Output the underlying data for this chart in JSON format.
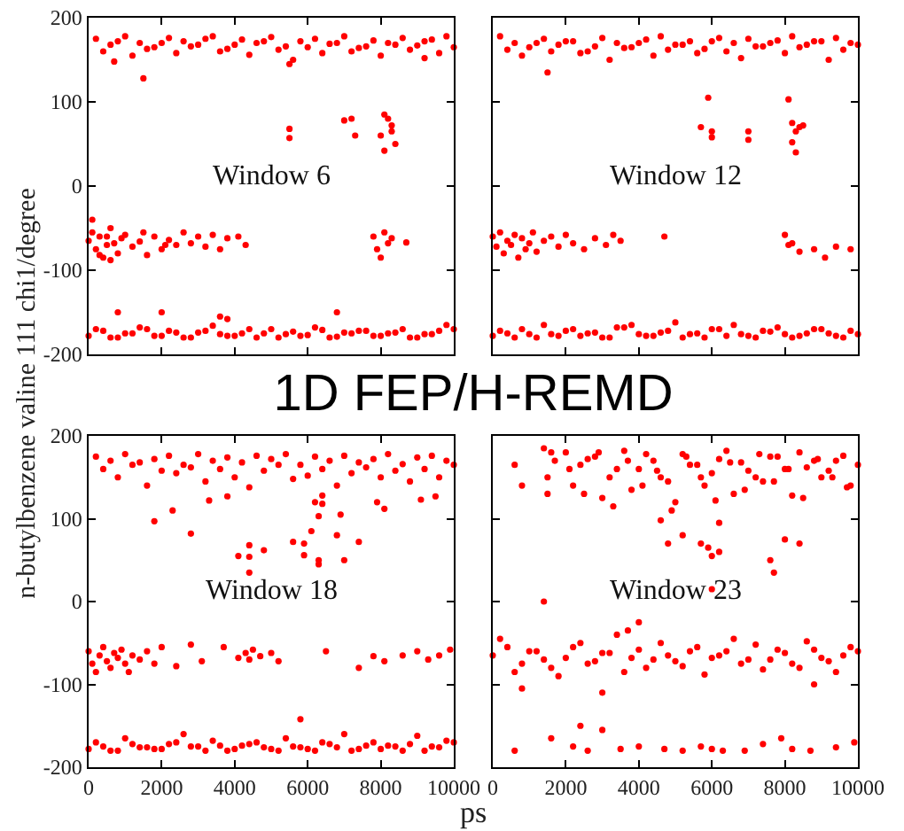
{
  "chart_data": [
    {
      "type": "scatter",
      "title": "1D FEP/H-REMD",
      "ylabel": "n-butylbenzene valine 111 chi1/degree",
      "annotations": [
        "Window 6"
      ],
      "color": "#ff0000",
      "marker": "circle",
      "xlim": [
        0,
        10000
      ],
      "ylim": [
        -200,
        200
      ],
      "xticks": [
        0,
        2000,
        4000,
        6000,
        8000,
        10000
      ],
      "yticks": [
        -200,
        -100,
        0,
        100,
        200
      ],
      "tick_labels": "y",
      "x": [
        200,
        600,
        1000,
        1400,
        1800,
        2200,
        2600,
        3000,
        3400,
        3800,
        4200,
        4600,
        5000,
        5400,
        5800,
        6200,
        6600,
        7000,
        7400,
        7800,
        8200,
        8600,
        9000,
        9400,
        9800,
        400,
        800,
        1200,
        1600,
        2000,
        2400,
        2800,
        3200,
        3600,
        4000,
        4400,
        4800,
        5200,
        5600,
        6000,
        6400,
        6800,
        7200,
        7600,
        8000,
        8400,
        8800,
        9200,
        9600,
        10000,
        1500,
        700,
        5500,
        9200,
        5500,
        5500,
        7000,
        7200,
        7300,
        8100,
        8200,
        8300,
        8300,
        8000,
        8100,
        8400,
        0,
        100,
        200,
        300,
        400,
        500,
        600,
        700,
        800,
        900,
        1000,
        1200,
        1400,
        1600,
        1800,
        2000,
        2200,
        2400,
        2600,
        2800,
        3000,
        3200,
        3400,
        3600,
        3800,
        4100,
        4300,
        100,
        300,
        500,
        1500,
        2100,
        600,
        7800,
        7900,
        8000,
        8100,
        8200,
        8300,
        8700,
        0,
        400,
        800,
        1200,
        1600,
        2000,
        2400,
        2800,
        3200,
        3600,
        4000,
        4400,
        4800,
        5200,
        5600,
        6000,
        6400,
        6800,
        7200,
        7600,
        8000,
        8400,
        8800,
        9200,
        9600,
        10000,
        200,
        600,
        1000,
        1400,
        1800,
        2200,
        2600,
        3000,
        3400,
        3800,
        4200,
        4600,
        5000,
        5400,
        5800,
        6200,
        6600,
        7000,
        7400,
        7800,
        8200,
        8600,
        9000,
        9400,
        9800,
        800,
        2000,
        3600,
        6800,
        3800
      ],
      "values": [
        175,
        168,
        178,
        170,
        165,
        176,
        172,
        168,
        178,
        163,
        174,
        170,
        177,
        166,
        172,
        175,
        169,
        178,
        164,
        173,
        170,
        176,
        167,
        174,
        178,
        160,
        172,
        155,
        163,
        170,
        158,
        166,
        175,
        160,
        168,
        156,
        172,
        162,
        150,
        165,
        158,
        170,
        160,
        166,
        155,
        168,
        162,
        172,
        158,
        165,
        128,
        148,
        145,
        152,
        68,
        57,
        78,
        80,
        60,
        85,
        80,
        72,
        65,
        60,
        42,
        50,
        -65,
        -55,
        -75,
        -60,
        -85,
        -70,
        -50,
        -68,
        -80,
        -62,
        -58,
        -72,
        -66,
        -82,
        -60,
        -75,
        -64,
        -70,
        -55,
        -68,
        -60,
        -72,
        -58,
        -75,
        -62,
        -60,
        -70,
        -40,
        -82,
        -60,
        -55,
        -70,
        -88,
        -60,
        -75,
        -85,
        -55,
        -68,
        -62,
        -67,
        -178,
        -172,
        -180,
        -175,
        -170,
        -178,
        -174,
        -180,
        -172,
        -176,
        -178,
        -170,
        -175,
        -180,
        -173,
        -177,
        -171,
        -179,
        -175,
        -172,
        -178,
        -174,
        -180,
        -176,
        -172,
        -170,
        -170,
        -180,
        -175,
        -168,
        -178,
        -172,
        -180,
        -174,
        -166,
        -178,
        -175,
        -180,
        -170,
        -176,
        -178,
        -168,
        -180,
        -174,
        -172,
        -178,
        -175,
        -170,
        -180,
        -176,
        -165,
        -150,
        -150,
        -155,
        -150,
        -158
      ]
    },
    {
      "type": "scatter",
      "annotations": [
        "Window 12"
      ],
      "color": "#ff0000",
      "marker": "circle",
      "xlim": [
        0,
        10000
      ],
      "ylim": [
        -200,
        200
      ],
      "xticks": [
        0,
        2000,
        4000,
        6000,
        8000,
        10000
      ],
      "yticks": [
        -200,
        -100,
        0,
        100,
        200
      ],
      "tick_labels": false,
      "x": [
        200,
        600,
        1000,
        1400,
        1800,
        2200,
        2600,
        3000,
        3400,
        3800,
        4200,
        4600,
        5000,
        5400,
        5800,
        6200,
        6600,
        7000,
        7400,
        7800,
        8200,
        8600,
        9000,
        9400,
        9800,
        400,
        800,
        1200,
        1600,
        2000,
        2400,
        2800,
        3200,
        3600,
        4000,
        4400,
        4800,
        5200,
        5600,
        6000,
        6400,
        6800,
        7200,
        7600,
        8000,
        8400,
        8800,
        9200,
        9600,
        10000,
        1500,
        5900,
        5700,
        6000,
        6000,
        7000,
        7000,
        8100,
        8200,
        8200,
        8300,
        8300,
        8400,
        8500,
        0,
        100,
        200,
        300,
        400,
        500,
        600,
        700,
        800,
        900,
        1000,
        1100,
        1200,
        1400,
        1600,
        1800,
        2000,
        2200,
        2500,
        2800,
        3100,
        3300,
        3500,
        4700,
        8000,
        8100,
        8200,
        8400,
        8800,
        9100,
        9400,
        9800,
        0,
        400,
        800,
        1200,
        1600,
        2000,
        2400,
        2800,
        3200,
        3600,
        4000,
        4400,
        4800,
        5200,
        5600,
        6000,
        6400,
        6800,
        7200,
        7600,
        8000,
        8400,
        8800,
        9200,
        9600,
        10000,
        200,
        600,
        1000,
        1400,
        1800,
        2200,
        2600,
        3000,
        3400,
        3800,
        4200,
        4600,
        5000,
        5400,
        5800,
        6200,
        6600,
        7000,
        7400,
        7800,
        8200,
        8600,
        9000,
        9400,
        9800
      ],
      "values": [
        178,
        170,
        165,
        175,
        168,
        172,
        160,
        176,
        170,
        165,
        174,
        178,
        168,
        172,
        163,
        176,
        170,
        175,
        166,
        173,
        178,
        168,
        172,
        176,
        170,
        162,
        155,
        170,
        160,
        172,
        158,
        166,
        150,
        164,
        170,
        155,
        162,
        168,
        158,
        172,
        160,
        152,
        166,
        170,
        158,
        165,
        172,
        150,
        162,
        168,
        135,
        105,
        70,
        65,
        58,
        55,
        65,
        103,
        75,
        52,
        40,
        65,
        70,
        72,
        -60,
        -72,
        -55,
        -80,
        -65,
        -70,
        -58,
        -85,
        -62,
        -75,
        -68,
        -55,
        -78,
        -65,
        -60,
        -72,
        -58,
        -68,
        -75,
        -62,
        -70,
        -58,
        -65,
        -60,
        -58,
        -70,
        -68,
        -78,
        -75,
        -85,
        -72,
        -75,
        -178,
        -175,
        -170,
        -180,
        -176,
        -172,
        -178,
        -174,
        -180,
        -168,
        -176,
        -178,
        -172,
        -180,
        -175,
        -170,
        -178,
        -176,
        -180,
        -173,
        -176,
        -178,
        -170,
        -175,
        -180,
        -176,
        -172,
        -180,
        -176,
        -165,
        -178,
        -170,
        -175,
        -180,
        -168,
        -165,
        -178,
        -174,
        -162,
        -176,
        -180,
        -170,
        -165,
        -178,
        -172,
        -168,
        -180,
        -175,
        -170,
        -178,
        -172
      ]
    },
    {
      "type": "scatter",
      "xlabel": "ps",
      "annotations": [
        "Window 18"
      ],
      "color": "#ff0000",
      "marker": "circle",
      "xlim": [
        0,
        10000
      ],
      "ylim": [
        -200,
        200
      ],
      "xticks": [
        0,
        2000,
        4000,
        6000,
        8000,
        10000
      ],
      "yticks": [
        -200,
        -100,
        0,
        100,
        200
      ],
      "x": [
        200,
        600,
        1000,
        1400,
        1800,
        2200,
        2600,
        3000,
        3400,
        3800,
        4200,
        4600,
        5000,
        5400,
        5800,
        6200,
        6600,
        7000,
        7400,
        7800,
        8200,
        8600,
        9000,
        9400,
        9800,
        400,
        800,
        1200,
        1600,
        2000,
        2400,
        2800,
        3200,
        3600,
        4000,
        4400,
        4800,
        5200,
        5600,
        6000,
        6400,
        6800,
        7200,
        7600,
        8000,
        8400,
        8800,
        9200,
        9600,
        10000,
        1800,
        2300,
        2800,
        3300,
        3800,
        4100,
        4400,
        4400,
        4400,
        4800,
        5600,
        5900,
        5900,
        6100,
        6200,
        6300,
        6300,
        6300,
        6400,
        6400,
        6800,
        6900,
        7000,
        7400,
        7900,
        8100,
        9100,
        9500,
        0,
        100,
        200,
        300,
        400,
        500,
        600,
        700,
        800,
        900,
        1000,
        1100,
        1200,
        1400,
        1600,
        1800,
        2000,
        2400,
        2800,
        3100,
        3700,
        4100,
        4300,
        4400,
        4500,
        4700,
        5000,
        5200,
        6500,
        7400,
        7800,
        8100,
        8600,
        9000,
        9300,
        9600,
        9900,
        5800,
        0,
        400,
        800,
        1200,
        1600,
        2000,
        2400,
        2800,
        3200,
        3600,
        4000,
        4400,
        4800,
        5200,
        5600,
        6000,
        6400,
        6800,
        7200,
        7600,
        8000,
        8400,
        8800,
        9200,
        9600,
        10000,
        200,
        600,
        1000,
        1400,
        1800,
        2200,
        2600,
        3000,
        3400,
        3800,
        4200,
        4600,
        5000,
        5400,
        5800,
        6200,
        6600,
        7000,
        7400,
        7800,
        8200,
        8600,
        9000,
        9400,
        9800
      ],
      "values": [
        175,
        170,
        178,
        168,
        172,
        176,
        165,
        178,
        170,
        174,
        168,
        176,
        172,
        178,
        165,
        175,
        170,
        176,
        168,
        172,
        178,
        166,
        174,
        176,
        170,
        160,
        150,
        165,
        140,
        158,
        155,
        162,
        145,
        160,
        150,
        138,
        158,
        165,
        148,
        152,
        160,
        140,
        155,
        162,
        150,
        158,
        145,
        160,
        150,
        165,
        97,
        110,
        82,
        122,
        127,
        55,
        68,
        54,
        35,
        62,
        72,
        70,
        56,
        85,
        120,
        103,
        50,
        45,
        118,
        128,
        80,
        105,
        50,
        72,
        120,
        112,
        123,
        127,
        -60,
        -75,
        -85,
        -65,
        -55,
        -72,
        -80,
        -62,
        -68,
        -58,
        -75,
        -85,
        -65,
        -70,
        -60,
        -75,
        -55,
        -78,
        -52,
        -72,
        -55,
        -68,
        -62,
        -70,
        -58,
        -66,
        -62,
        -72,
        -60,
        -80,
        -66,
        -72,
        -65,
        -60,
        -70,
        -65,
        -58,
        -142,
        -178,
        -175,
        -180,
        -172,
        -176,
        -178,
        -170,
        -175,
        -180,
        -174,
        -178,
        -172,
        -176,
        -180,
        -175,
        -178,
        -170,
        -176,
        -180,
        -174,
        -178,
        -175,
        -172,
        -180,
        -176,
        -170,
        -170,
        -180,
        -165,
        -176,
        -178,
        -172,
        -160,
        -175,
        -168,
        -180,
        -174,
        -170,
        -178,
        -165,
        -176,
        -180,
        -172,
        -160,
        -178,
        -170,
        -174,
        -180,
        -162,
        -175,
        -168
      ]
    },
    {
      "type": "scatter",
      "annotations": [
        "Window 23"
      ],
      "color": "#ff0000",
      "marker": "circle",
      "xlim": [
        0,
        10000
      ],
      "ylim": [
        -200,
        200
      ],
      "xticks": [
        0,
        2000,
        4000,
        6000,
        8000,
        10000
      ],
      "yticks": [
        -200,
        -100,
        0,
        100,
        200
      ],
      "tick_labels": "x",
      "x": [
        600,
        800,
        1400,
        1500,
        1600,
        1700,
        1500,
        2000,
        2400,
        2800,
        3200,
        3600,
        4000,
        4400,
        4800,
        5200,
        5600,
        6000,
        6400,
        6800,
        7200,
        7600,
        8000,
        8400,
        8800,
        9200,
        9600,
        10000,
        2200,
        2600,
        3000,
        3400,
        3800,
        4200,
        4600,
        5000,
        5400,
        5800,
        6200,
        6600,
        7000,
        7400,
        7800,
        8200,
        8600,
        9000,
        9400,
        9800,
        2100,
        2500,
        2900,
        3300,
        3700,
        4100,
        4500,
        4900,
        5300,
        5700,
        6100,
        6500,
        6900,
        7300,
        7700,
        8100,
        8500,
        8900,
        9300,
        9700,
        4600,
        4800,
        5200,
        5700,
        5900,
        6000,
        6200,
        6200,
        6000,
        7600,
        7700,
        8000,
        8400,
        0,
        400,
        800,
        1200,
        1600,
        2000,
        2400,
        2800,
        3200,
        3600,
        4000,
        4400,
        4800,
        5200,
        5600,
        6000,
        6400,
        6800,
        7200,
        7600,
        8000,
        8400,
        8800,
        9200,
        9600,
        10000,
        200,
        600,
        1000,
        1400,
        1800,
        2200,
        2600,
        3000,
        3400,
        3800,
        4200,
        4600,
        5000,
        5400,
        5800,
        6200,
        6600,
        7000,
        7400,
        7800,
        8200,
        8600,
        9000,
        9400,
        9800,
        1400,
        3000,
        800,
        3700,
        4000,
        8800,
        600,
        1600,
        2200,
        2400,
        2600,
        3000,
        3500,
        4000,
        4700,
        5200,
        5700,
        6000,
        6300,
        6900,
        7400,
        7900,
        8200,
        8700,
        9400,
        9900
      ],
      "values": [
        165,
        140,
        185,
        150,
        180,
        170,
        130,
        180,
        165,
        175,
        150,
        182,
        160,
        170,
        145,
        178,
        165,
        155,
        182,
        168,
        150,
        175,
        160,
        180,
        170,
        158,
        176,
        165,
        140,
        172,
        125,
        160,
        135,
        178,
        150,
        120,
        165,
        140,
        172,
        130,
        158,
        145,
        175,
        128,
        162,
        150,
        170,
        140,
        160,
        130,
        180,
        115,
        170,
        140,
        158,
        110,
        175,
        150,
        122,
        168,
        135,
        178,
        145,
        160,
        125,
        172,
        150,
        138,
        98,
        70,
        80,
        70,
        65,
        55,
        95,
        60,
        15,
        50,
        35,
        75,
        70,
        -65,
        -55,
        -75,
        -60,
        -80,
        -68,
        -50,
        -72,
        -62,
        -85,
        -58,
        -70,
        -65,
        -78,
        -55,
        -68,
        -60,
        -75,
        -52,
        -70,
        -62,
        -80,
        -58,
        -72,
        -65,
        -60,
        -45,
        -85,
        -60,
        -70,
        -90,
        -55,
        -75,
        -62,
        -40,
        -68,
        -80,
        -50,
        -72,
        -60,
        -88,
        -65,
        -45,
        -70,
        -82,
        -58,
        -75,
        -48,
        -68,
        -85,
        -55,
        0,
        -110,
        -105,
        -35,
        -25,
        -100,
        -180,
        -165,
        -175,
        -150,
        -180,
        -155,
        -178,
        -175,
        -178,
        -180,
        -175,
        -178,
        -180,
        -180,
        -172,
        -165,
        -178,
        -180,
        -176,
        -170
      ]
    }
  ]
}
